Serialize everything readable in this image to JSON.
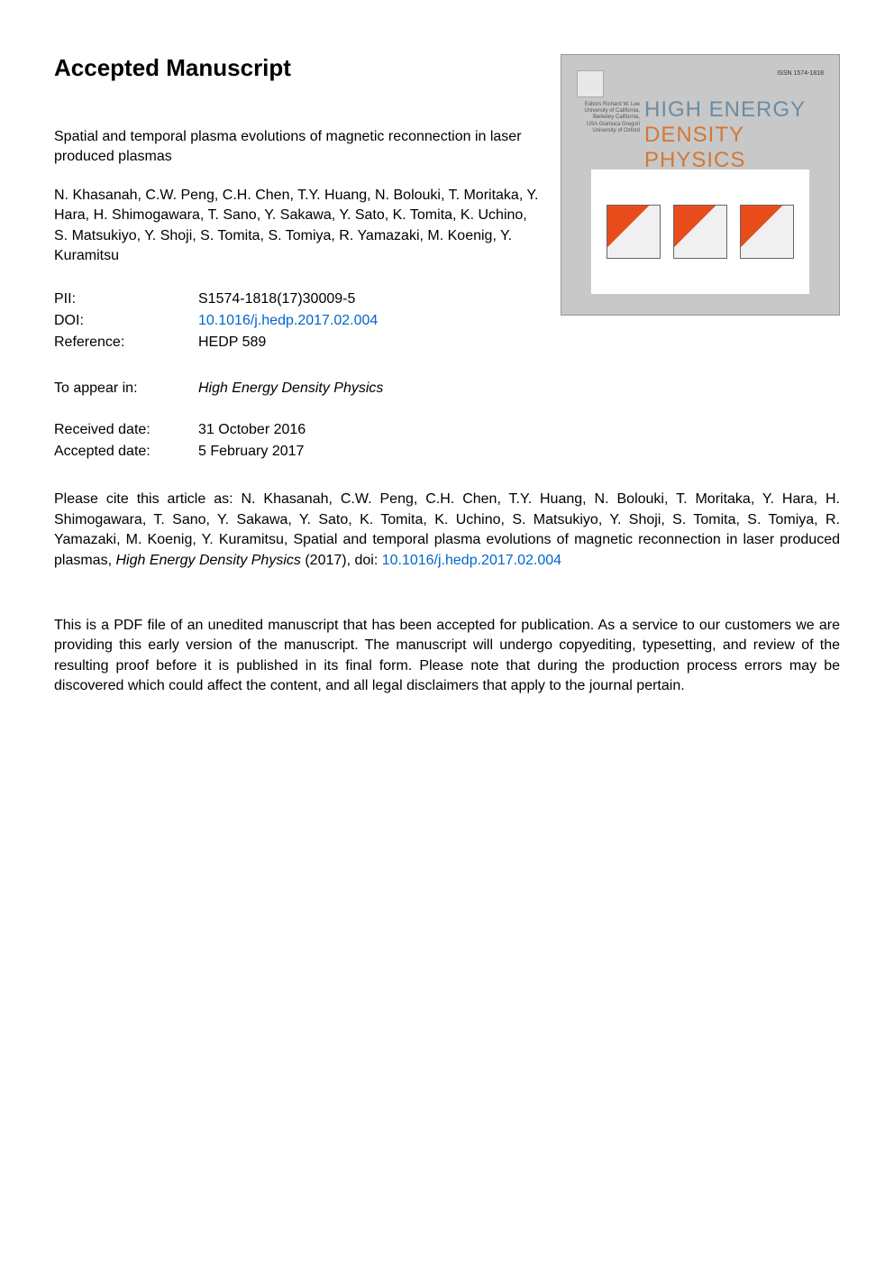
{
  "heading": "Accepted Manuscript",
  "article_title": "Spatial and temporal plasma evolutions of magnetic reconnection in laser produced plasmas",
  "authors": "N. Khasanah, C.W. Peng, C.H. Chen, T.Y. Huang, N. Bolouki, T. Moritaka, Y. Hara, H. Shimogawara, T. Sano, Y. Sakawa, Y. Sato, K. Tomita, K. Uchino, S. Matsukiyo, Y. Shoji, S. Tomita, S. Tomiya, R. Yamazaki, M. Koenig, Y. Kuramitsu",
  "metadata": {
    "pii_label": "PII:",
    "pii_value": "S1574-1818(17)30009-5",
    "doi_label": "DOI:",
    "doi_value": "10.1016/j.hedp.2017.02.004",
    "ref_label": "Reference:",
    "ref_value": "HEDP 589"
  },
  "appear": {
    "label": "To appear in:",
    "value": "High Energy Density Physics"
  },
  "dates": {
    "received_label": "Received date:",
    "received_value": "31 October 2016",
    "accepted_label": "Accepted date:",
    "accepted_value": "5 February 2017"
  },
  "citation": {
    "prefix": "Please cite this article as: N. Khasanah, C.W. Peng, C.H. Chen, T.Y. Huang, N. Bolouki, T. Moritaka, Y. Hara, H. Shimogawara, T. Sano, Y. Sakawa, Y. Sato, K. Tomita, K. Uchino, S. Matsukiyo, Y. Shoji, S. Tomita, S. Tomiya, R. Yamazaki, M. Koenig, Y. Kuramitsu, Spatial and temporal plasma evolutions of magnetic reconnection in laser produced plasmas, ",
    "journal": "High Energy Density Physics",
    "year": " (2017), doi: ",
    "doi_link": "10.1016/j.hedp.2017.02.004"
  },
  "disclaimer": "This is a PDF file of an unedited manuscript that has been accepted for publication. As a service to our customers we are providing this early version of the manuscript. The manuscript will undergo copyediting, typesetting, and review of the resulting proof before it is published in its final form. Please note that during the production process errors may be discovered which could affect the content, and all legal disclaimers that apply to the journal pertain.",
  "cover": {
    "issn": "ISSN 1574-1818",
    "editors": "Editors\nRichard W. Lee\nUniversity of California, Berkeley\nCalifornia, USA\n\nGianluca Gregori\nUniversity of Oxford",
    "journal_line1": "HIGH ENERGY",
    "journal_line2": "DENSITY PHYSICS"
  },
  "colors": {
    "link_color": "#0066cc",
    "cover_bg": "#c8c8c8",
    "title1_color": "#6b8ca3",
    "title2_color": "#d17838",
    "panel_color": "#e84c1a"
  }
}
